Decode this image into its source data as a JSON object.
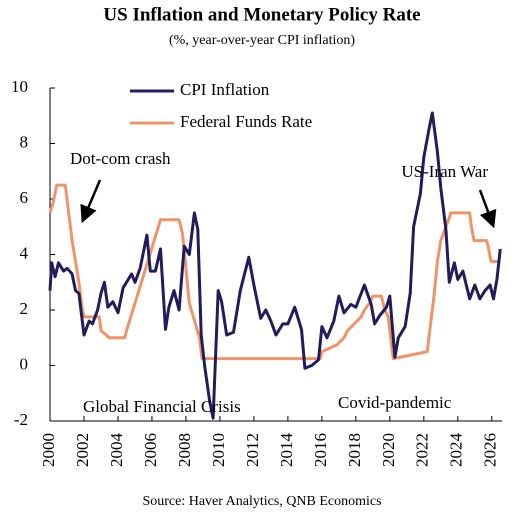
{
  "chart_data": {
    "type": "line",
    "title": "US Inflation and Monetary Policy Rate",
    "subtitle": "(%, year-over-year CPI inflation)",
    "source": "Source: Haver Analytics, QNB Economics",
    "annotations": [
      "Dot-com crash",
      "US-Iran War",
      "Global Financial Crisis",
      "Covid-pandemic"
    ],
    "legend": "upper left",
    "grid": false,
    "xlim": [
      2000,
      2026.6
    ],
    "xticks": [
      2000,
      2002,
      2004,
      2006,
      2008,
      2010,
      2012,
      2014,
      2016,
      2018,
      2020,
      2022,
      2024,
      2026
    ],
    "ylim": [
      -2,
      10
    ],
    "yticks": [
      -2,
      0,
      2,
      4,
      6,
      8,
      10
    ],
    "series": [
      {
        "name": "CPI Inflation",
        "color": "#211c5c",
        "x": [
          2000,
          2000.1,
          2000.3,
          2000.5,
          2000.8,
          2001.0,
          2001.3,
          2001.5,
          2001.7,
          2001.9,
          2002.0,
          2002.3,
          2002.5,
          2002.8,
          2003.0,
          2003.2,
          2003.4,
          2003.7,
          2004.0,
          2004.3,
          2004.5,
          2004.8,
          2005.0,
          2005.3,
          2005.7,
          2005.9,
          2006.2,
          2006.5,
          2006.8,
          2007.0,
          2007.3,
          2007.6,
          2007.9,
          2008.2,
          2008.5,
          2008.7,
          2008.9,
          2009.1,
          2009.4,
          2009.6,
          2009.9,
          2010.1,
          2010.4,
          2010.8,
          2011.2,
          2011.7,
          2012.0,
          2012.4,
          2012.7,
          2013.0,
          2013.3,
          2013.7,
          2014.0,
          2014.4,
          2014.8,
          2015.0,
          2015.4,
          2015.8,
          2016.0,
          2016.3,
          2016.7,
          2017.0,
          2017.3,
          2017.7,
          2018.0,
          2018.5,
          2018.9,
          2019.1,
          2019.4,
          2019.8,
          2020.0,
          2020.3,
          2020.5,
          2020.9,
          2021.2,
          2021.4,
          2021.8,
          2022.0,
          2022.3,
          2022.5,
          2022.8,
          2023.0,
          2023.3,
          2023.5,
          2023.8,
          2024.0,
          2024.3,
          2024.7,
          2025.0,
          2025.3,
          2025.6,
          2025.9,
          2026.1,
          2026.3,
          2026.5
        ],
        "values": [
          2.7,
          3.7,
          3.2,
          3.7,
          3.4,
          3.5,
          3.3,
          2.7,
          2.6,
          1.6,
          1.1,
          1.6,
          1.5,
          2.0,
          2.6,
          3.0,
          2.1,
          2.3,
          1.9,
          2.8,
          3.0,
          3.3,
          3.0,
          3.5,
          4.7,
          3.4,
          3.4,
          4.2,
          1.3,
          2.1,
          2.7,
          2.0,
          4.3,
          4.0,
          5.5,
          4.9,
          1.1,
          0.0,
          -1.3,
          -1.9,
          2.7,
          2.3,
          1.1,
          1.2,
          2.7,
          3.9,
          2.9,
          1.7,
          2.0,
          1.6,
          1.1,
          1.5,
          1.5,
          2.1,
          1.3,
          -0.1,
          0.0,
          0.2,
          1.4,
          1.0,
          1.6,
          2.5,
          1.9,
          2.2,
          2.1,
          2.9,
          2.2,
          1.5,
          1.8,
          2.1,
          2.5,
          0.3,
          1.0,
          1.4,
          2.6,
          5.0,
          6.2,
          7.5,
          8.5,
          9.1,
          7.7,
          6.4,
          4.9,
          3.0,
          3.7,
          3.1,
          3.4,
          2.4,
          2.9,
          2.4,
          2.7,
          2.9,
          2.4,
          3.1,
          4.2
        ]
      },
      {
        "name": "Federal Funds Rate",
        "color": "#ef9468",
        "x": [
          2000,
          2000.2,
          2000.4,
          2000.9,
          2001.0,
          2001.3,
          2001.7,
          2001.9,
          2002.0,
          2002.9,
          2003.0,
          2003.5,
          2004.4,
          2004.5,
          2005.0,
          2005.5,
          2006.0,
          2006.5,
          2007.6,
          2007.8,
          2008.0,
          2008.2,
          2008.8,
          2008.95,
          2015.9,
          2016.0,
          2016.9,
          2017.3,
          2017.5,
          2017.9,
          2018.3,
          2018.5,
          2018.8,
          2019.0,
          2019.5,
          2019.7,
          2019.9,
          2020.2,
          2022.2,
          2022.4,
          2022.6,
          2022.8,
          2023.0,
          2023.3,
          2023.6,
          2024.7,
          2024.8,
          2024.95,
          2025.7,
          2025.8,
          2025.95,
          2026.5
        ],
        "values": [
          5.5,
          5.9,
          6.5,
          6.5,
          6.0,
          4.5,
          3.0,
          2.0,
          1.75,
          1.75,
          1.25,
          1.0,
          1.0,
          1.25,
          2.25,
          3.25,
          4.25,
          5.25,
          5.25,
          4.75,
          3.5,
          2.25,
          1.0,
          0.25,
          0.25,
          0.5,
          0.75,
          1.0,
          1.25,
          1.5,
          1.75,
          2.0,
          2.25,
          2.5,
          2.5,
          2.0,
          1.75,
          0.25,
          0.5,
          1.5,
          2.5,
          3.75,
          4.5,
          5.0,
          5.5,
          5.5,
          5.0,
          4.5,
          4.5,
          4.25,
          3.75,
          3.75
        ]
      }
    ]
  }
}
